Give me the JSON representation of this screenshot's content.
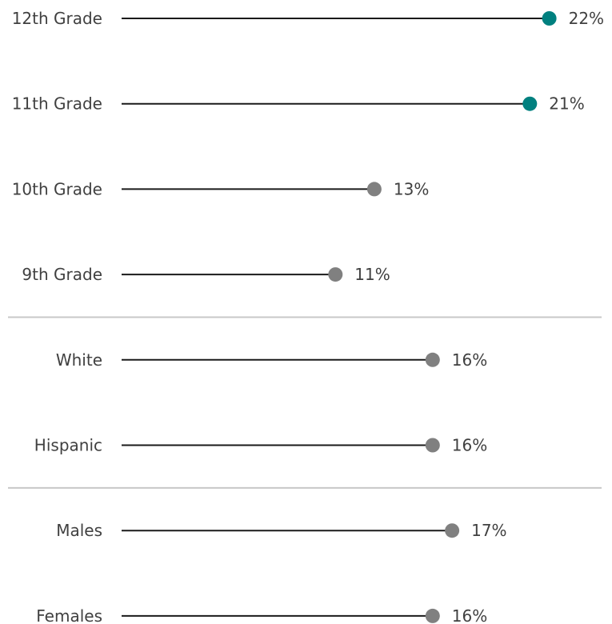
{
  "chart_data": {
    "type": "lollipop",
    "unit": "%",
    "categories": [
      "12th Grade",
      "11th Grade",
      "10th Grade",
      "9th Grade",
      "White",
      "Hispanic",
      "Males",
      "Females"
    ],
    "values": [
      22,
      21,
      13,
      11,
      16,
      16,
      17,
      16
    ],
    "value_labels": [
      "22%",
      "21%",
      "13%",
      "11%",
      "16%",
      "16%",
      "17%",
      "16%"
    ],
    "highlighted": [
      true,
      true,
      false,
      false,
      false,
      false,
      false,
      false
    ],
    "groups": [
      {
        "items": [
          "12th Grade",
          "11th Grade",
          "10th Grade",
          "9th Grade"
        ]
      },
      {
        "items": [
          "White",
          "Hispanic"
        ]
      },
      {
        "items": [
          "Males",
          "Females"
        ]
      }
    ],
    "xlim": [
      0,
      22
    ],
    "colors": {
      "highlight": "#00807f",
      "default": "#808080",
      "stem": "#1a1a1a",
      "separator": "#c8c8c8"
    }
  }
}
